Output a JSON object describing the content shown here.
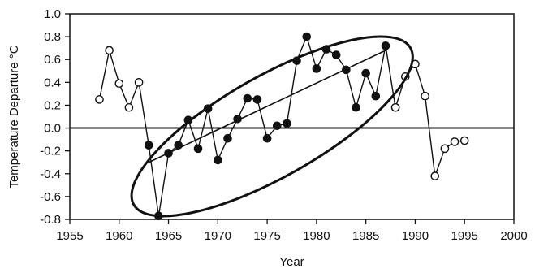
{
  "chart_data": {
    "type": "scatter",
    "xlabel": "Year",
    "ylabel": "Temperature Departure °C",
    "xlim": [
      1955,
      2000
    ],
    "ylim": [
      -0.8,
      1.0
    ],
    "x_ticks": [
      "1955",
      "1960",
      "1965",
      "1970",
      "1975",
      "1980",
      "1985",
      "1990",
      "1995",
      "2000"
    ],
    "y_ticks": [
      "1.0",
      "0.8",
      "0.6",
      "0.4",
      "0.2",
      "0.0",
      "-0.2",
      "-0.4",
      "-0.6",
      "-0.8"
    ],
    "grid": false,
    "zero_line": true,
    "series": [
      {
        "style": "open-circle-line",
        "points": [
          [
            1958,
            0.25
          ],
          [
            1959,
            0.68
          ],
          [
            1960,
            0.39
          ],
          [
            1961,
            0.18
          ],
          [
            1962,
            0.4
          ],
          [
            1963,
            -0.15
          ]
        ]
      },
      {
        "style": "filled-circle-line",
        "points": [
          [
            1963,
            -0.15
          ],
          [
            1964,
            -0.77
          ],
          [
            1965,
            -0.22
          ],
          [
            1966,
            -0.15
          ],
          [
            1967,
            0.07
          ],
          [
            1968,
            -0.18
          ],
          [
            1969,
            0.17
          ],
          [
            1970,
            -0.28
          ],
          [
            1971,
            -0.09
          ],
          [
            1972,
            0.08
          ],
          [
            1973,
            0.26
          ],
          [
            1974,
            0.25
          ],
          [
            1975,
            -0.09
          ],
          [
            1976,
            0.02
          ],
          [
            1977,
            0.04
          ],
          [
            1978,
            0.59
          ],
          [
            1979,
            0.8
          ],
          [
            1980,
            0.52
          ],
          [
            1981,
            0.69
          ],
          [
            1982,
            0.64
          ],
          [
            1983,
            0.51
          ],
          [
            1984,
            0.18
          ],
          [
            1985,
            0.48
          ],
          [
            1986,
            0.28
          ],
          [
            1987,
            0.72
          ],
          [
            1988,
            0.18
          ]
        ]
      },
      {
        "style": "open-circle-line",
        "points": [
          [
            1988,
            0.18
          ],
          [
            1989,
            0.45
          ],
          [
            1990,
            0.56
          ],
          [
            1991,
            0.28
          ],
          [
            1992,
            -0.42
          ],
          [
            1993,
            -0.18
          ],
          [
            1994,
            -0.12
          ],
          [
            1995,
            -0.11
          ]
        ]
      }
    ],
    "trend_line": {
      "x": [
        1963,
        1987
      ],
      "y": [
        -0.3,
        0.68
      ]
    },
    "highlight_ellipse": true
  }
}
